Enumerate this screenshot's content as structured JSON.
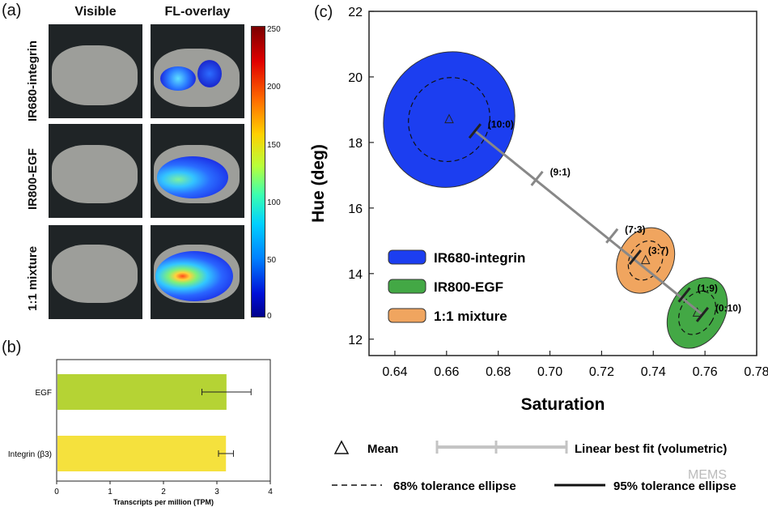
{
  "panel_a": {
    "label": "(a)",
    "col_headers": [
      "Visible",
      "FL-overlay"
    ],
    "row_labels": [
      "IR680-integrin",
      "IR800-EGF",
      "1:1 mixture"
    ],
    "colorbar": {
      "ticks": [
        "250",
        "200",
        "150",
        "100",
        "50",
        "0"
      ],
      "min": 0,
      "max": 250
    }
  },
  "panel_b": {
    "label": "(b)"
  },
  "panel_c": {
    "label": "(c)",
    "footer": {
      "mean": "Mean",
      "linear_fit": "Linear best fit (volumetric)",
      "ellipse68": "68% tolerance ellipse",
      "ellipse95": "95% tolerance ellipse"
    },
    "watermark": "MEMS"
  },
  "chart_data": [
    {
      "type": "bar",
      "orientation": "horizontal",
      "categories": [
        "EGF",
        "Integrin (β3)"
      ],
      "values": [
        3.18,
        3.17
      ],
      "errors": [
        0.46,
        0.14
      ],
      "colors": [
        "#b5d334",
        "#f5e13d"
      ],
      "xlabel": "Transcripts per million (TPM)",
      "xlim": [
        0,
        4
      ],
      "xticks": [
        "0",
        "1",
        "2",
        "3",
        "4"
      ]
    },
    {
      "type": "scatter",
      "xlabel": "Saturation",
      "ylabel": "Hue (deg)",
      "xlim": [
        0.63,
        0.78
      ],
      "ylim": [
        11.5,
        22
      ],
      "xticks": [
        "0.64",
        "0.66",
        "0.68",
        "0.70",
        "0.72",
        "0.74",
        "0.76",
        "0.78"
      ],
      "yticks": [
        "12",
        "14",
        "16",
        "18",
        "20",
        "22"
      ],
      "series": [
        {
          "name": "IR680-integrin",
          "color": "#1c3ef0",
          "mean": [
            0.661,
            18.7
          ],
          "ellipse95": {
            "rx": 0.025,
            "ry": 2.1
          },
          "ellipse68": {
            "rx": 0.0155,
            "ry": 1.3
          }
        },
        {
          "name": "IR800-EGF",
          "color": "#43a845",
          "mean": [
            0.757,
            12.8
          ],
          "ellipse95": {
            "rx": 0.0105,
            "ry": 1.15
          },
          "ellipse68": {
            "rx": 0.0065,
            "ry": 0.7
          }
        },
        {
          "name": "1:1 mixture",
          "color": "#f0a55f",
          "mean": [
            0.737,
            14.4
          ],
          "ellipse95": {
            "rx": 0.0105,
            "ry": 1.05
          },
          "ellipse68": {
            "rx": 0.0062,
            "ry": 0.63
          }
        }
      ],
      "fit_line": {
        "points": [
          {
            "label": "(10:0)",
            "x": 0.671,
            "y": 18.35
          },
          {
            "label": "(9:1)",
            "x": 0.695,
            "y": 16.9
          },
          {
            "label": "(7:3)",
            "x": 0.724,
            "y": 15.15
          },
          {
            "label": "(3:7)",
            "x": 0.733,
            "y": 14.5
          },
          {
            "label": "(1:9)",
            "x": 0.752,
            "y": 13.35
          },
          {
            "label": "(0:10)",
            "x": 0.759,
            "y": 12.75
          }
        ]
      }
    }
  ]
}
